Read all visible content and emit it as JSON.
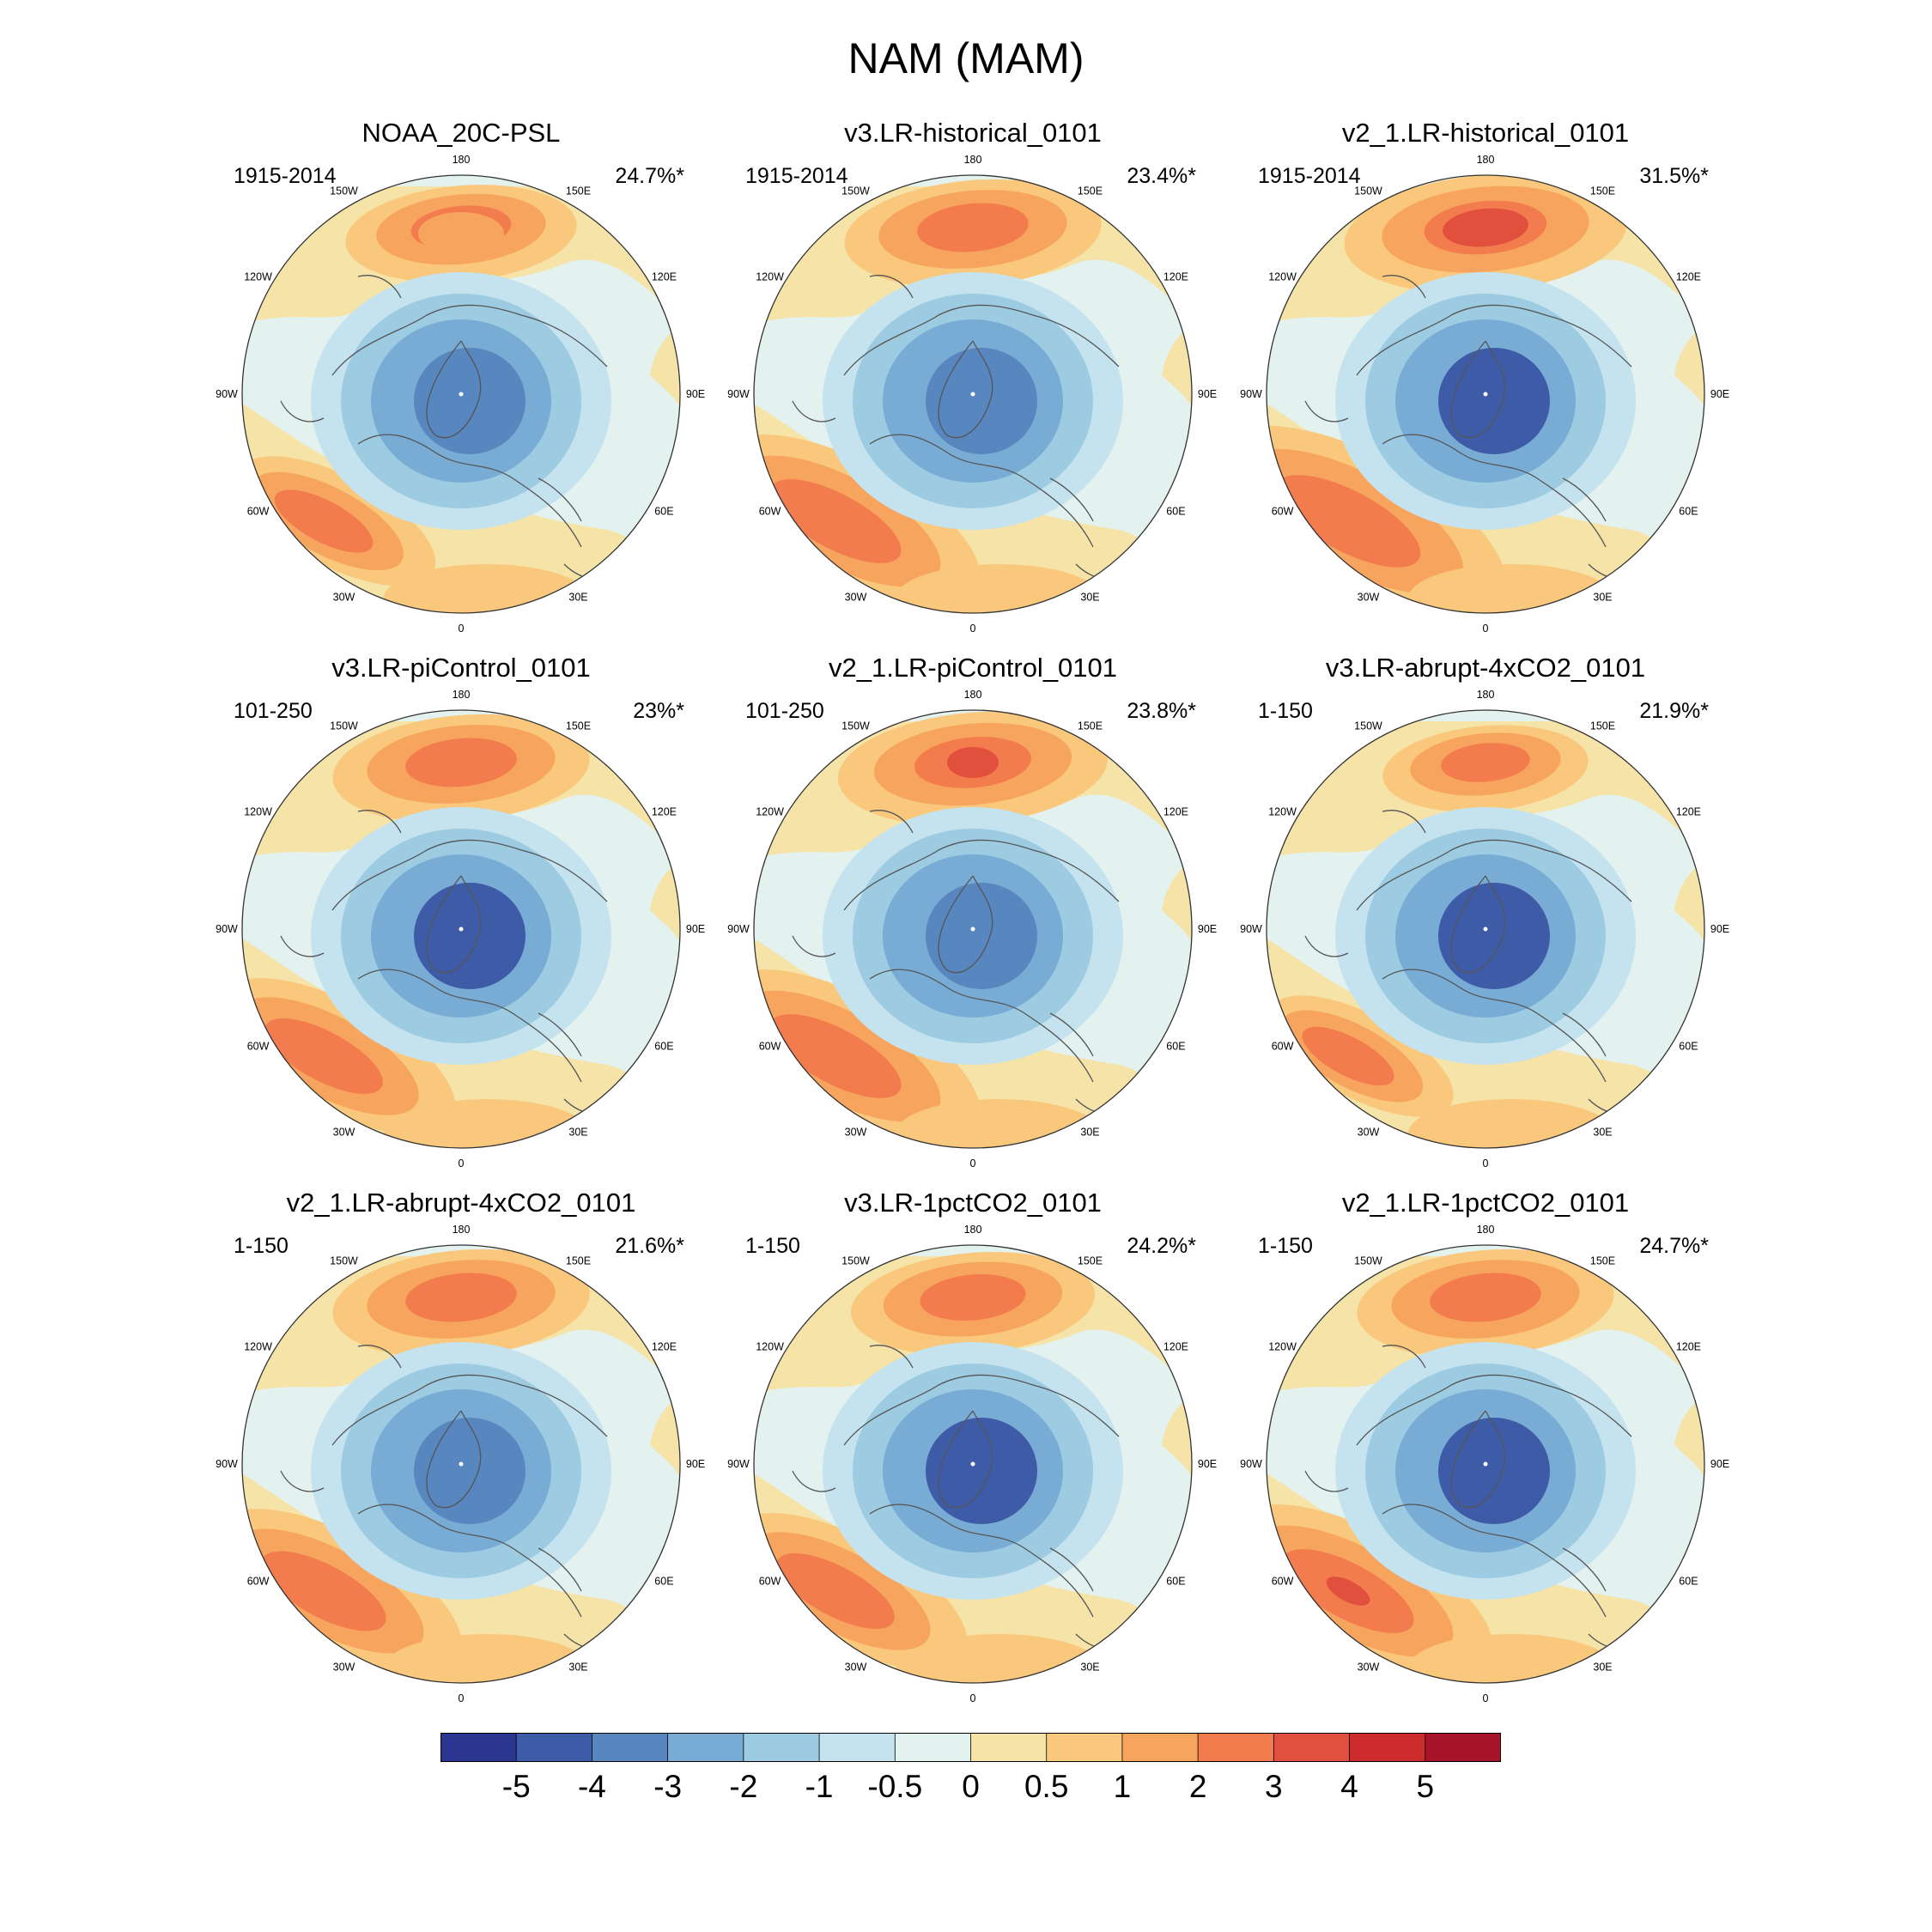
{
  "title": "NAM (MAM)",
  "longitude_labels": [
    "180",
    "150E",
    "120E",
    "90E",
    "60E",
    "30E",
    "0",
    "30W",
    "60W",
    "90W",
    "120W",
    "150W"
  ],
  "panels": [
    {
      "title": "NOAA_20C-PSL",
      "period": "1915-2014",
      "variance": "24.7%*"
    },
    {
      "title": "v3.LR-historical_0101",
      "period": "1915-2014",
      "variance": "23.4%*"
    },
    {
      "title": "v2_1.LR-historical_0101",
      "period": "1915-2014",
      "variance": "31.5%*"
    },
    {
      "title": "v3.LR-piControl_0101",
      "period": "101-250",
      "variance": "23%*"
    },
    {
      "title": "v2_1.LR-piControl_0101",
      "period": "101-250",
      "variance": "23.8%*"
    },
    {
      "title": "v3.LR-abrupt-4xCO2_0101",
      "period": "1-150",
      "variance": "21.9%*"
    },
    {
      "title": "v2_1.LR-abrupt-4xCO2_0101",
      "period": "1-150",
      "variance": "21.6%*"
    },
    {
      "title": "v3.LR-1pctCO2_0101",
      "period": "1-150",
      "variance": "24.2%*"
    },
    {
      "title": "v2_1.LR-1pctCO2_0101",
      "period": "1-150",
      "variance": "24.7%*"
    }
  ],
  "colorbar": {
    "labels": [
      "-5",
      "-4",
      "-3",
      "-2",
      "-1",
      "-0.5",
      "0",
      "0.5",
      "1",
      "2",
      "3",
      "4",
      "5"
    ],
    "colors": [
      "#2c3590",
      "#3e5ba8",
      "#5886bf",
      "#78acd5",
      "#9ccbe2",
      "#c5e3ee",
      "#e3f1ef",
      "#f5e3a7",
      "#f9c87d",
      "#f7a55e",
      "#f37c4f",
      "#e1503d",
      "#cc2c2b",
      "#a8152b"
    ]
  },
  "chart_data": {
    "type": "polar-stereographic contour maps (3x3 panels)",
    "title": "NAM (MAM)",
    "variable": "NAM regression pattern",
    "levels": [
      -5,
      -4,
      -3,
      -2,
      -1,
      -0.5,
      0,
      0.5,
      1,
      2,
      3,
      4,
      5
    ],
    "panels": [
      {
        "name": "NOAA_20C-PSL",
        "years": "1915-2014",
        "explained_variance_pct": 24.7
      },
      {
        "name": "v3.LR-historical_0101",
        "years": "1915-2014",
        "explained_variance_pct": 23.4
      },
      {
        "name": "v2_1.LR-historical_0101",
        "years": "1915-2014",
        "explained_variance_pct": 31.5
      },
      {
        "name": "v3.LR-piControl_0101",
        "years": "101-250",
        "explained_variance_pct": 23.0
      },
      {
        "name": "v2_1.LR-piControl_0101",
        "years": "101-250",
        "explained_variance_pct": 23.8
      },
      {
        "name": "v3.LR-abrupt-4xCO2_0101",
        "years": "1-150",
        "explained_variance_pct": 21.9
      },
      {
        "name": "v2_1.LR-abrupt-4xCO2_0101",
        "years": "1-150",
        "explained_variance_pct": 21.6
      },
      {
        "name": "v3.LR-1pctCO2_0101",
        "years": "1-150",
        "explained_variance_pct": 24.2
      },
      {
        "name": "v2_1.LR-1pctCO2_0101",
        "years": "1-150",
        "explained_variance_pct": 24.7
      }
    ]
  }
}
